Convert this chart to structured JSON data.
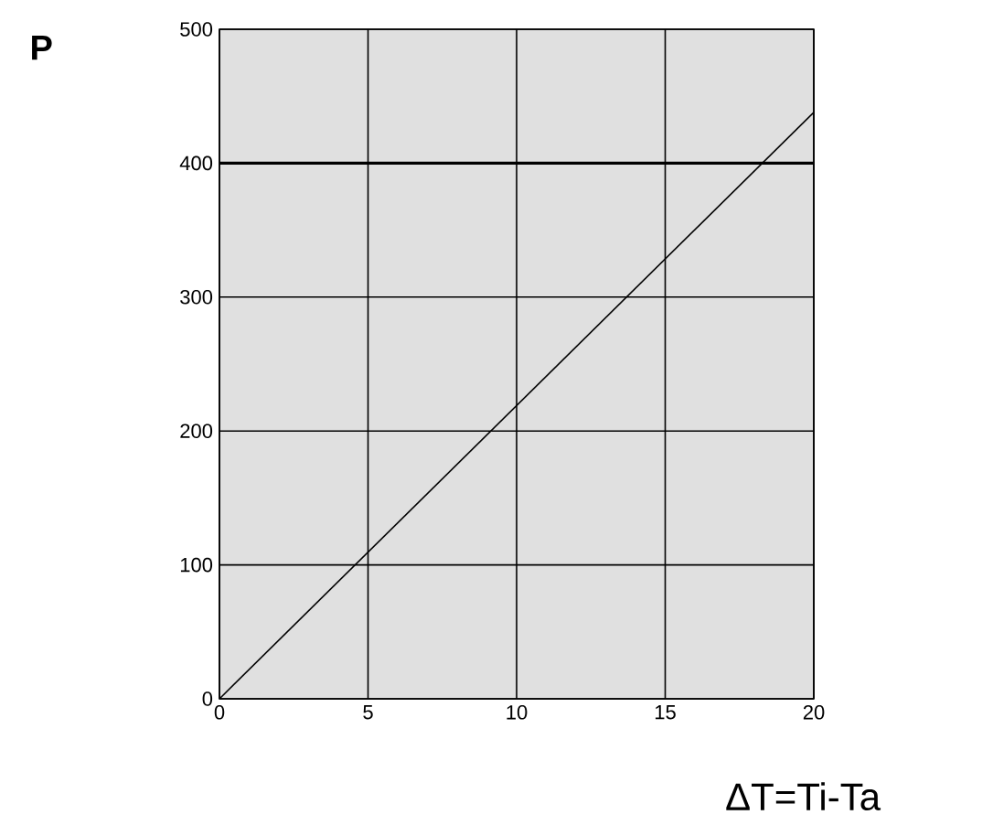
{
  "chart_data": {
    "type": "line",
    "ylabel": "P",
    "xlabel": "ΔT=Ti-Ta",
    "x": [
      0,
      20
    ],
    "series": [
      {
        "color": "#000000",
        "values": [
          0,
          438
        ]
      }
    ],
    "xlim": [
      0,
      20
    ],
    "xticks": [
      0,
      5,
      10,
      15,
      20
    ],
    "ylim": [
      0,
      500
    ],
    "yticks": [
      0,
      100,
      200,
      300,
      400,
      500
    ],
    "ref_lines": [
      {
        "axis": "y",
        "value": 400,
        "color": "#000000"
      }
    ],
    "grid": true,
    "marker": "none",
    "line_style": "solid"
  }
}
